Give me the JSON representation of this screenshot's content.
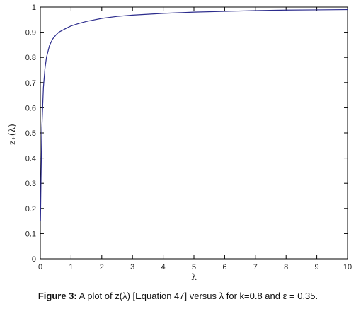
{
  "chart_data": {
    "type": "line",
    "xlabel": "λ",
    "ylabel": "z₊(λ)",
    "xlim": [
      0,
      10
    ],
    "ylim": [
      0,
      1
    ],
    "xticks": [
      "0",
      "1",
      "2",
      "3",
      "4",
      "5",
      "6",
      "7",
      "8",
      "9",
      "10"
    ],
    "yticks": [
      "0",
      "0.1",
      "0.2",
      "0.3",
      "0.4",
      "0.5",
      "0.6",
      "0.7",
      "0.8",
      "0.9",
      "1"
    ],
    "grid": false,
    "series": [
      {
        "color": "#2b2b8c",
        "x": [
          0.005,
          0.02,
          0.05,
          0.1,
          0.15,
          0.2,
          0.3,
          0.4,
          0.5,
          0.6,
          0.8,
          1,
          1.25,
          1.5,
          2,
          2.5,
          3,
          4,
          5,
          6,
          7,
          8,
          9,
          10
        ],
        "y": [
          0.15,
          0.3,
          0.52,
          0.68,
          0.755,
          0.8,
          0.848,
          0.873,
          0.888,
          0.9,
          0.913,
          0.925,
          0.935,
          0.943,
          0.955,
          0.963,
          0.968,
          0.975,
          0.98,
          0.983,
          0.986,
          0.988,
          0.989,
          0.99
        ]
      }
    ]
  },
  "caption": {
    "lead": "Figure 3:",
    "text": " A plot of z(λ) [Equation 47] versus λ for k=0.8 and ε = 0.35."
  }
}
